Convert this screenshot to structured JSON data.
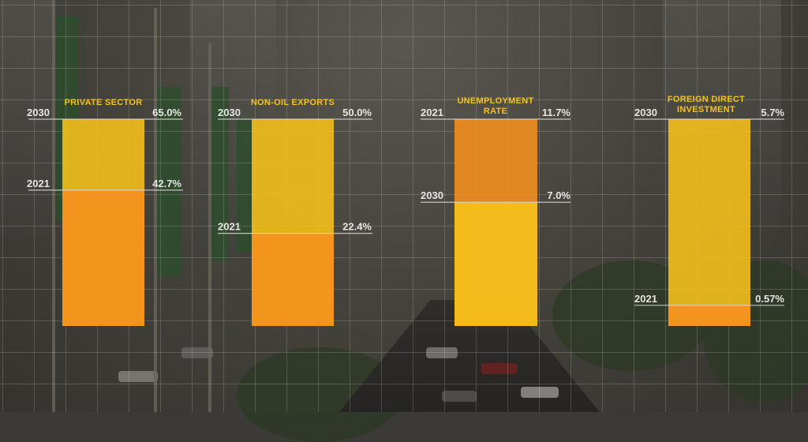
{
  "chart_data": [
    {
      "type": "bar",
      "title": "PRIVATE SECTOR",
      "unit": "%",
      "series": [
        {
          "name": "2021",
          "value": 42.7,
          "label": "42.7%"
        },
        {
          "name": "2030",
          "value": 65.0,
          "label": "65.0%"
        }
      ]
    },
    {
      "type": "bar",
      "title": "NON-OIL EXPORTS",
      "unit": "%",
      "series": [
        {
          "name": "2021",
          "value": 22.4,
          "label": "22.4%"
        },
        {
          "name": "2030",
          "value": 50.0,
          "label": "50.0%"
        }
      ]
    },
    {
      "type": "bar",
      "title": "UNEMPLOYMENT RATE",
      "unit": "%",
      "series": [
        {
          "name": "2021",
          "value": 11.7,
          "label": "11.7%"
        },
        {
          "name": "2030",
          "value": 7.0,
          "label": "7.0%"
        }
      ]
    },
    {
      "type": "bar",
      "title": "FOREIGN DIRECT INVESTMENT",
      "unit": "%",
      "series": [
        {
          "name": "2021",
          "value": 0.57,
          "label": "0.57%"
        },
        {
          "name": "2030",
          "value": 5.7,
          "label": "5.7%"
        }
      ]
    }
  ],
  "colors": {
    "year_2021": "#f5901e",
    "year_2030": "#f7c21a",
    "title": "#f6c31d",
    "year_label": "#e6e6e6",
    "guide_line": "#d9d9d9"
  }
}
